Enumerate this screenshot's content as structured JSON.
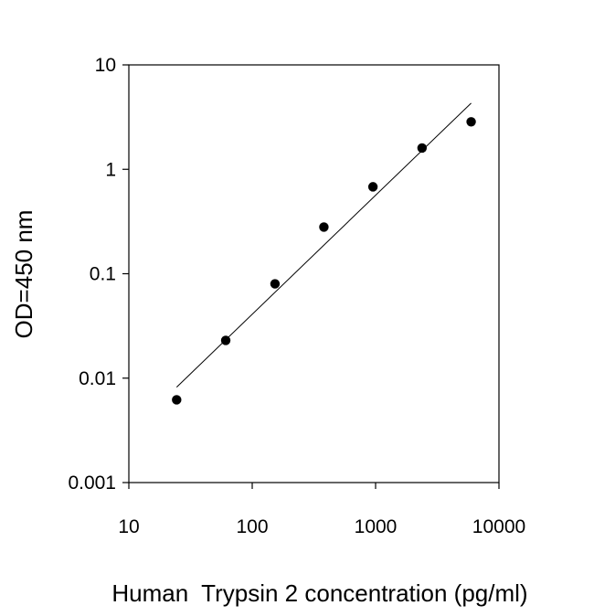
{
  "chart_data": {
    "type": "scatter",
    "title": "",
    "xlabel": "Human  Trypsin 2 concentration (pg/ml)",
    "ylabel": "OD=450 nm",
    "x_scale": "log",
    "y_scale": "log",
    "xlim": [
      10,
      10000
    ],
    "ylim": [
      0.001,
      10
    ],
    "x_ticks": [
      {
        "value": 10,
        "label": "10"
      },
      {
        "value": 100,
        "label": "100"
      },
      {
        "value": 1000,
        "label": "1000"
      },
      {
        "value": 10000,
        "label": "10000"
      }
    ],
    "y_ticks": [
      {
        "value": 0.001,
        "label": "0.001"
      },
      {
        "value": 0.01,
        "label": "0.01"
      },
      {
        "value": 0.1,
        "label": "0.1"
      },
      {
        "value": 1,
        "label": "1"
      },
      {
        "value": 10,
        "label": "10"
      }
    ],
    "grid": false,
    "legend": "none",
    "points": [
      {
        "x": 24.4,
        "y": 0.0062
      },
      {
        "x": 61,
        "y": 0.023
      },
      {
        "x": 153,
        "y": 0.08
      },
      {
        "x": 381,
        "y": 0.28
      },
      {
        "x": 952,
        "y": 0.68
      },
      {
        "x": 2380,
        "y": 1.6
      },
      {
        "x": 5950,
        "y": 2.85
      }
    ],
    "fit_line": [
      {
        "x": 24.4,
        "y": 0.0082
      },
      {
        "x": 5950,
        "y": 4.3
      }
    ],
    "colors": {
      "marker": "#000000",
      "line": "#000000",
      "axis": "#000000"
    }
  }
}
